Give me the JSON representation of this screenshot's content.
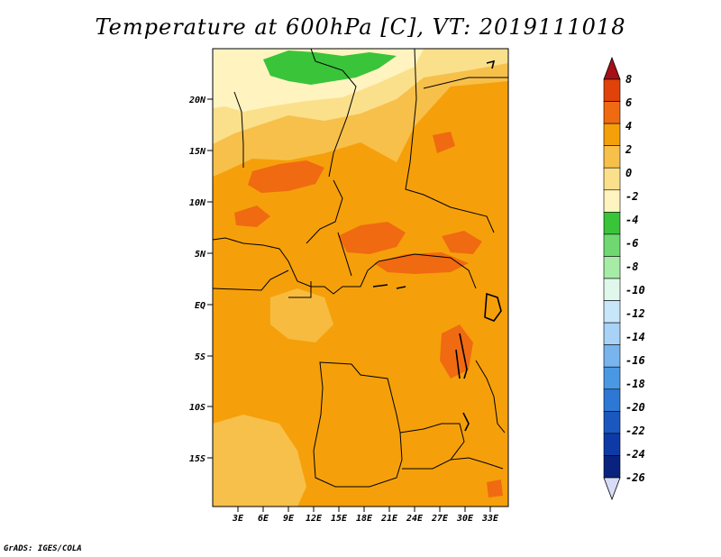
{
  "title": "Temperature at 600hPa [C], VT: 2019111018",
  "credit": "GrADS: IGES/COLA",
  "map": {
    "lat_ticks": [
      "20N",
      "15N",
      "10N",
      "5N",
      "EQ",
      "5S",
      "10S",
      "15S"
    ],
    "lon_ticks": [
      "3E",
      "6E",
      "9E",
      "12E",
      "15E",
      "18E",
      "21E",
      "24E",
      "27E",
      "30E",
      "33E"
    ]
  },
  "colorbar": {
    "labels": [
      "8",
      "6",
      "4",
      "2",
      "0",
      "-2",
      "-4",
      "-6",
      "-8",
      "-10",
      "-12",
      "-14",
      "-16",
      "-18",
      "-20",
      "-22",
      "-24",
      "-26"
    ],
    "colors": [
      "#a50f15",
      "#e0420a",
      "#f06a12",
      "#f5a00a",
      "#f7c04a",
      "#fbe08c",
      "#fff3c0",
      "#3ac43a",
      "#70d870",
      "#a6eca6",
      "#e0f8ec",
      "#c8e6fa",
      "#a8d2f6",
      "#78b4ee",
      "#4a98e4",
      "#2c78d4",
      "#1a58c0",
      "#0d3aa6",
      "#08227e",
      "#d8dcf6"
    ]
  }
}
